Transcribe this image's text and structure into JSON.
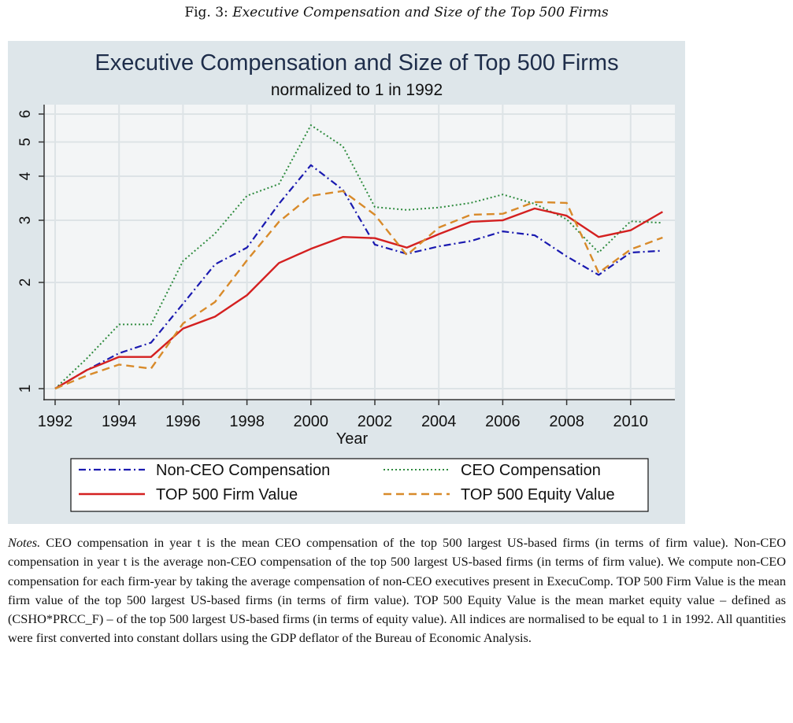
{
  "caption": {
    "prefix": "Fig. 3:",
    "title": "Executive Compensation and Size of the Top 500 Firms"
  },
  "chart_data": {
    "type": "line",
    "title": "Executive Compensation and Size of Top 500 Firms",
    "subtitle": "normalized to 1 in 1992",
    "xlabel": "Year",
    "ylabel": "",
    "yscale": "log",
    "ylim": [
      0.93,
      6.3
    ],
    "xlim": [
      1992,
      2011
    ],
    "yticks": [
      1,
      2,
      3,
      4,
      5,
      6
    ],
    "xticks": [
      1992,
      1994,
      1996,
      1998,
      2000,
      2002,
      2004,
      2006,
      2008,
      2010
    ],
    "grid": true,
    "legend_position": "bottom",
    "x": [
      1992,
      1993,
      1994,
      1995,
      1996,
      1997,
      1998,
      1999,
      2000,
      2001,
      2002,
      2003,
      2004,
      2005,
      2006,
      2007,
      2008,
      2009,
      2010,
      2011
    ],
    "series": [
      {
        "name": "Non-CEO Compensation",
        "color": "#1a1ab0",
        "style": "dash-dot",
        "values": [
          1.0,
          1.13,
          1.26,
          1.35,
          1.74,
          2.25,
          2.51,
          3.34,
          4.3,
          3.66,
          2.56,
          2.41,
          2.53,
          2.62,
          2.79,
          2.72,
          2.37,
          2.1,
          2.43,
          2.46
        ]
      },
      {
        "name": "CEO Compensation",
        "color": "#2e8b3e",
        "style": "dotted",
        "values": [
          1.0,
          1.22,
          1.52,
          1.52,
          2.3,
          2.75,
          3.52,
          3.8,
          5.58,
          4.86,
          3.27,
          3.21,
          3.26,
          3.36,
          3.55,
          3.34,
          3.02,
          2.43,
          2.98,
          2.95
        ]
      },
      {
        "name": "TOP 500 Firm Value",
        "color": "#d42020",
        "style": "solid",
        "values": [
          1.0,
          1.13,
          1.23,
          1.23,
          1.48,
          1.6,
          1.84,
          2.27,
          2.49,
          2.69,
          2.67,
          2.51,
          2.74,
          2.97,
          3.0,
          3.24,
          3.09,
          2.69,
          2.81,
          3.17
        ]
      },
      {
        "name": "TOP 500 Equity Value",
        "color": "#d88a2a",
        "style": "dashed",
        "values": [
          1.0,
          1.09,
          1.17,
          1.14,
          1.53,
          1.76,
          2.31,
          2.97,
          3.52,
          3.63,
          3.11,
          2.39,
          2.86,
          3.11,
          3.13,
          3.38,
          3.36,
          2.13,
          2.48,
          2.68
        ]
      }
    ]
  },
  "notes": {
    "label": "Notes.",
    "text": "CEO compensation in year t is the mean CEO compensation of the top 500 largest US-based firms (in terms of firm value). Non-CEO compensation in year t is the average non-CEO compensation of the top 500 largest US-based firms (in terms of firm value). We compute non-CEO compensation for each firm-year by taking the average compensation of non-CEO executives present in ExecuComp. TOP 500 Firm Value is the mean firm value of the top 500 largest US-based firms (in terms of firm value). TOP 500 Equity Value is the mean market equity value – defined as (CSHO*PRCC_F) – of the top 500 largest US-based firms (in terms of equity value). All indices are normalised to be equal to 1 in 1992. All quantities were first converted into constant dollars using the GDP deflator of the Bureau of Economic Analysis."
  }
}
